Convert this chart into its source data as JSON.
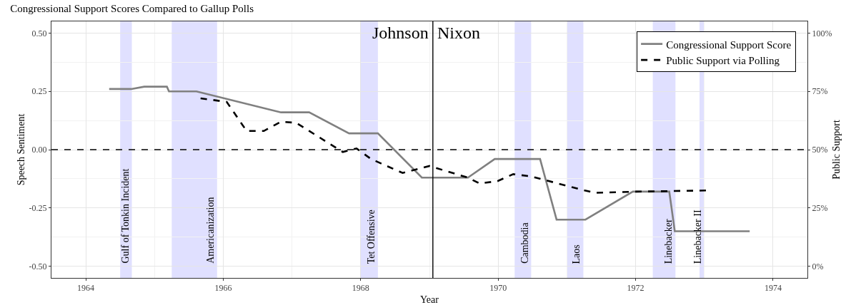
{
  "chart_data": {
    "type": "line",
    "title": "Congressional Support Scores Compared to Gallup Polls",
    "xlabel": "Year",
    "ylabel": "Speech Sentiment",
    "y2label": "Public Support",
    "xlim": [
      1963.5,
      1974.5
    ],
    "xticks": [
      1964,
      1966,
      1968,
      1970,
      1972,
      1974
    ],
    "ylim": [
      -0.55,
      0.55
    ],
    "yticks": [
      {
        "value": -0.5,
        "label": "-0.50"
      },
      {
        "value": -0.25,
        "label": "-0.25"
      },
      {
        "value": 0,
        "label": "0.00"
      },
      {
        "value": 0.25,
        "label": "0.25"
      },
      {
        "value": 0.5,
        "label": "0.50"
      }
    ],
    "y2lim": [
      -5,
      105
    ],
    "y2ticks": [
      {
        "value": 0,
        "label": "0%"
      },
      {
        "value": 25,
        "label": "25%"
      },
      {
        "value": 50,
        "label": "50%"
      },
      {
        "value": 75,
        "label": "75%"
      },
      {
        "value": 100,
        "label": "100%"
      }
    ],
    "grid": true,
    "legend": "top right",
    "series": [
      {
        "name": "Congressional Support Score",
        "color": "#808080",
        "line_style": "solid",
        "x": [
          1964.34,
          1964.66,
          1964.85,
          1965.18,
          1965.21,
          1965.61,
          1966.84,
          1967.25,
          1967.83,
          1968.25,
          1968.89,
          1969.56,
          1969.95,
          1970.61,
          1970.85,
          1971.27,
          1971.96,
          1972.49,
          1972.57,
          1973.66
        ],
        "values": [
          0.26,
          0.26,
          0.27,
          0.27,
          0.25,
          0.25,
          0.16,
          0.16,
          0.07,
          0.07,
          -0.12,
          -0.12,
          -0.04,
          -0.04,
          -0.3,
          -0.3,
          -0.18,
          -0.18,
          -0.35,
          -0.35
        ]
      },
      {
        "name": "Public Support via Polling",
        "color": "#000000",
        "line_style": "dashed",
        "axis": "y2",
        "x": [
          1965.67,
          1966.05,
          1966.34,
          1966.59,
          1966.84,
          1967.06,
          1967.74,
          1967.94,
          1968.15,
          1968.61,
          1969.0,
          1969.56,
          1969.73,
          1969.99,
          1970.22,
          1970.48,
          1971.26,
          1971.41,
          1972.0,
          1973.04
        ],
        "values": [
          72,
          70.5,
          58,
          58,
          62,
          61.5,
          49,
          50.5,
          46,
          40,
          43,
          38,
          35.5,
          36.5,
          39.5,
          38.5,
          32.5,
          31.5,
          32,
          32.5
        ]
      }
    ],
    "ref_lines": [
      {
        "axis": "y",
        "value": 0,
        "color": "#000000",
        "line_style": "dashed"
      },
      {
        "axis": "x",
        "value": 1969.05,
        "color": "#000000",
        "line_style": "solid"
      }
    ],
    "bands": [
      {
        "axis": "x",
        "from": 1964.5,
        "to": 1964.67,
        "label": "Gulf of Tonkin Incident",
        "color": "#e0e0ff"
      },
      {
        "axis": "x",
        "from": 1965.25,
        "to": 1965.91,
        "label": "Americanization",
        "color": "#e0e0ff"
      },
      {
        "axis": "x",
        "from": 1968.0,
        "to": 1968.25,
        "label": "Tet Offensive",
        "color": "#e0e0ff"
      },
      {
        "axis": "x",
        "from": 1970.24,
        "to": 1970.48,
        "label": "Cambodia",
        "color": "#e0e0ff"
      },
      {
        "axis": "x",
        "from": 1971.0,
        "to": 1971.24,
        "label": "Laos",
        "color": "#e0e0ff"
      },
      {
        "axis": "x",
        "from": 1972.25,
        "to": 1972.58,
        "label": "Linebacker",
        "color": "#e0e0ff"
      },
      {
        "axis": "x",
        "from": 1972.93,
        "to": 1973.0,
        "label": "Linebacker II",
        "color": "#e0e0ff"
      }
    ],
    "annotations": [
      {
        "text": "Johnson",
        "x": 1969.05,
        "y": 0.5
      },
      {
        "text": "Nixon",
        "x": 1969.05,
        "y": 0.5
      }
    ]
  }
}
